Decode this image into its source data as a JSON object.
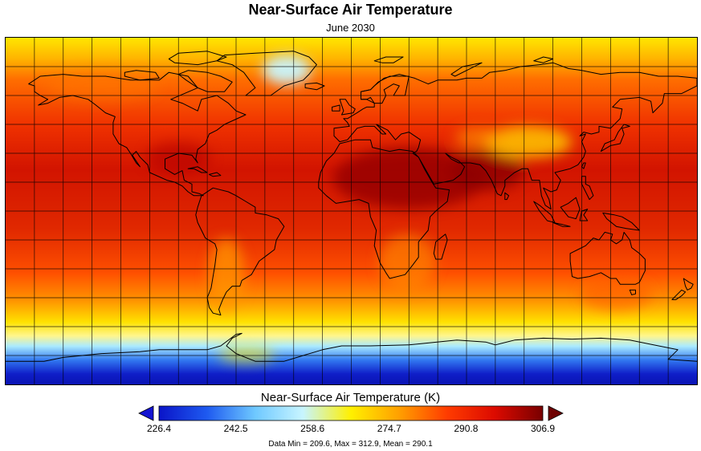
{
  "title": "Near-Surface Air Temperature",
  "subtitle": "June 2030",
  "colorbar": {
    "title": "Near-Surface Air Temperature (K)",
    "min": 226.4,
    "max": 306.9,
    "ticks": [
      "226.4",
      "242.5",
      "258.6",
      "274.7",
      "290.8",
      "306.9"
    ],
    "colors": [
      "#0a14c8",
      "#1e5af0",
      "#6ec8ff",
      "#c8f5ff",
      "#fff000",
      "#ffa000",
      "#ff3c00",
      "#dc0a00",
      "#780000"
    ],
    "under_color": "#1414d2",
    "over_color": "#6e0000"
  },
  "stats": "Data Min = 209.6, Max = 312.9, Mean = 290.1",
  "map": {
    "projection": "equirectangular",
    "lon_range": [
      -180,
      180
    ],
    "lat_range": [
      -90,
      90
    ],
    "grid_spacing_degrees": 15,
    "coastlines": true
  }
}
